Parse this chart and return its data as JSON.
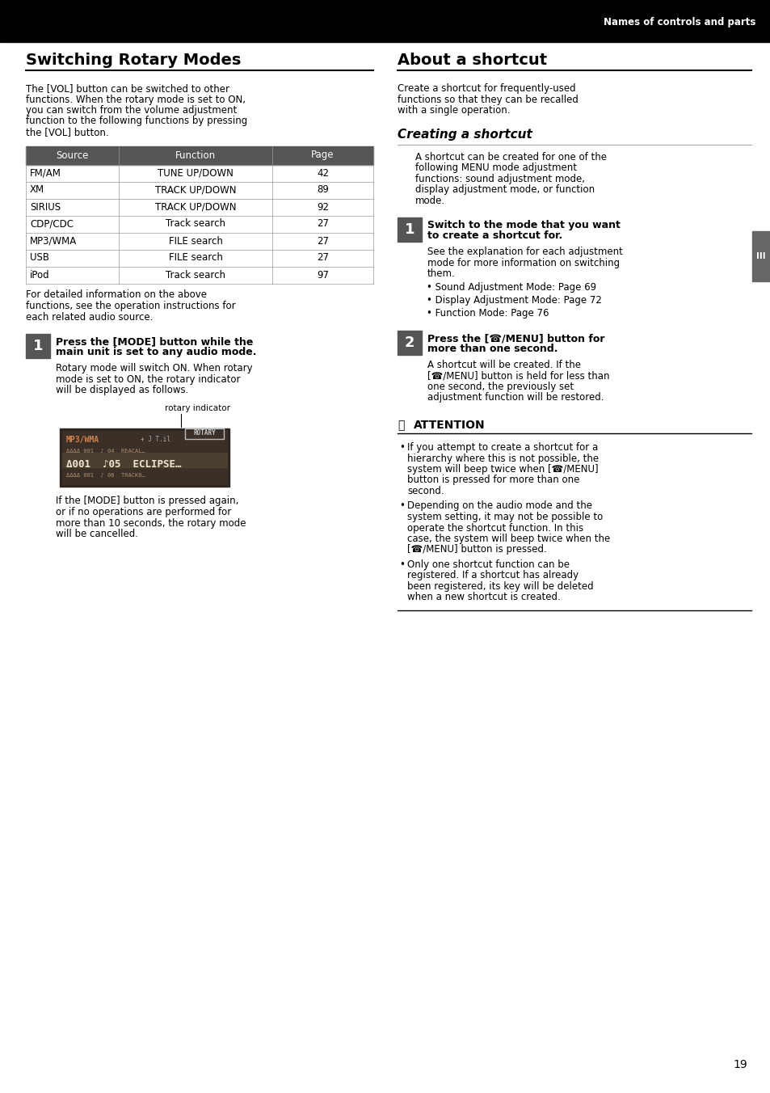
{
  "page_bg": "#ffffff",
  "header_bg": "#000000",
  "header_text": "Names of controls and parts",
  "header_text_color": "#ffffff",
  "left_title": "Switching Rotary Modes",
  "right_title": "About a shortcut",
  "left_body1": "The [VOL] button can be switched to other functions. When the rotary mode is set to ON, you can switch from the volume adjustment function to the following functions by pressing the [VOL] button.",
  "table_header_bg": "#555555",
  "table_header_text_color": "#ffffff",
  "table_cols": [
    "Source",
    "Function",
    "Page"
  ],
  "table_rows": [
    [
      "FM/AM",
      "TUNE UP/DOWN",
      "42"
    ],
    [
      "XM",
      "TRACK UP/DOWN",
      "89"
    ],
    [
      "SIRIUS",
      "TRACK UP/DOWN",
      "92"
    ],
    [
      "CDP/CDC",
      "Track search",
      "27"
    ],
    [
      "MP3/WMA",
      "FILE search",
      "27"
    ],
    [
      "USB",
      "FILE search",
      "27"
    ],
    [
      "iPod",
      "Track search",
      "97"
    ]
  ],
  "left_footnote": "For detailed information on the above functions, see the operation instructions for each related audio source.",
  "step1_num": "1",
  "step1_bg": "#555555",
  "step1_text_color": "#ffffff",
  "step1_title_line1": "Press the [MODE] button while the",
  "step1_title_line2": "main unit is set to any audio mode.",
  "step1_body": "Rotary mode will switch ON. When rotary mode is set to ON, the rotary indicator will be displayed as follows.",
  "rotary_label": "rotary indicator",
  "step1_body2": "If the [MODE] button is pressed again, or if no operations are performed for more than 10 seconds, the rotary mode will be cancelled.",
  "right_body1": "Create a shortcut for frequently-used functions so that they can be recalled with a single operation.",
  "creating_title": "Creating a shortcut",
  "creating_body": "A shortcut can be created for one of the following MENU mode adjustment functions: sound adjustment mode, display adjustment mode, or function mode.",
  "step1r_num": "1",
  "step1r_title_line1": "Switch to the mode that you want",
  "step1r_title_line2": "to create a shortcut for.",
  "step1r_body": "See the explanation for each adjustment mode for more information on switching them.",
  "step1r_bullets": [
    "Sound Adjustment Mode: Page 69",
    "Display Adjustment Mode: Page 72",
    "Function Mode: Page 76"
  ],
  "step2r_num": "2",
  "step2r_title_line1": "Press the [☎/MENU] button for",
  "step2r_title_line2": "more than one second.",
  "step2r_body": "A shortcut will be created. If the [☎/MENU] button is held for less than one second, the previously set adjustment function will be restored.",
  "attention_title": "ATTENTION",
  "attention_bullets": [
    "If you attempt to create a shortcut for a hierarchy where this is not possible, the system will beep twice when [☎/MENU] button is pressed for more than one second.",
    "Depending on the audio mode and the system setting, it may not be possible to operate the shortcut function. In this case, the system will beep twice when the [☎/MENU] button is pressed.",
    "Only one shortcut function can be registered. If a shortcut has already been registered, its key will be deleted when a new shortcut is created."
  ],
  "page_number": "19",
  "tab_label": "III"
}
